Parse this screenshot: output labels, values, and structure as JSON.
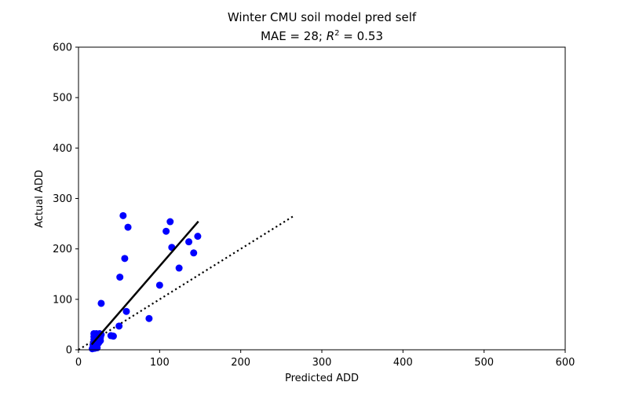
{
  "chart_data": {
    "type": "scatter",
    "title_line1": "Winter CMU soil model pred self",
    "title_line2_prefix": "MAE = 28; ",
    "title_r_symbol": "R",
    "title_r_superscript": "2",
    "title_line2_suffix": " = 0.53",
    "xlabel": "Predicted ADD",
    "ylabel": "Actual ADD",
    "xlim": [
      0,
      600
    ],
    "ylim": [
      0,
      600
    ],
    "x_ticks": [
      0,
      100,
      200,
      300,
      400,
      500,
      600
    ],
    "y_ticks": [
      0,
      100,
      200,
      300,
      400,
      500,
      600
    ],
    "grid": false,
    "colors": {
      "points": "#0000ff",
      "fit_line": "#000000",
      "identity_line": "#000000"
    },
    "points": [
      {
        "x": 17,
        "y": 2
      },
      {
        "x": 18,
        "y": 6
      },
      {
        "x": 18,
        "y": 10
      },
      {
        "x": 19,
        "y": 14
      },
      {
        "x": 19,
        "y": 20
      },
      {
        "x": 19,
        "y": 26
      },
      {
        "x": 19,
        "y": 32
      },
      {
        "x": 20,
        "y": 3
      },
      {
        "x": 20,
        "y": 8
      },
      {
        "x": 21,
        "y": 12
      },
      {
        "x": 21,
        "y": 18
      },
      {
        "x": 21,
        "y": 24
      },
      {
        "x": 22,
        "y": 28
      },
      {
        "x": 22,
        "y": 32
      },
      {
        "x": 23,
        "y": 4
      },
      {
        "x": 23,
        "y": 10
      },
      {
        "x": 24,
        "y": 16
      },
      {
        "x": 24,
        "y": 22
      },
      {
        "x": 24,
        "y": 30
      },
      {
        "x": 25,
        "y": 14
      },
      {
        "x": 25,
        "y": 20
      },
      {
        "x": 26,
        "y": 26
      },
      {
        "x": 26,
        "y": 32
      },
      {
        "x": 27,
        "y": 18
      },
      {
        "x": 27,
        "y": 24
      },
      {
        "x": 28,
        "y": 30
      },
      {
        "x": 28,
        "y": 92
      },
      {
        "x": 40,
        "y": 28
      },
      {
        "x": 43,
        "y": 27
      },
      {
        "x": 50,
        "y": 47
      },
      {
        "x": 51,
        "y": 144
      },
      {
        "x": 55,
        "y": 266
      },
      {
        "x": 57,
        "y": 181
      },
      {
        "x": 59,
        "y": 76
      },
      {
        "x": 61,
        "y": 243
      },
      {
        "x": 87,
        "y": 62
      },
      {
        "x": 100,
        "y": 128
      },
      {
        "x": 108,
        "y": 235
      },
      {
        "x": 113,
        "y": 254
      },
      {
        "x": 115,
        "y": 203
      },
      {
        "x": 124,
        "y": 162
      },
      {
        "x": 136,
        "y": 214
      },
      {
        "x": 142,
        "y": 192
      },
      {
        "x": 147,
        "y": 225
      }
    ],
    "fit_line": {
      "style": "solid",
      "x": [
        17,
        147
      ],
      "y": [
        12,
        253
      ]
    },
    "identity_line": {
      "style": "dotted",
      "x": [
        0,
        267
      ],
      "y": [
        0,
        267
      ]
    }
  }
}
